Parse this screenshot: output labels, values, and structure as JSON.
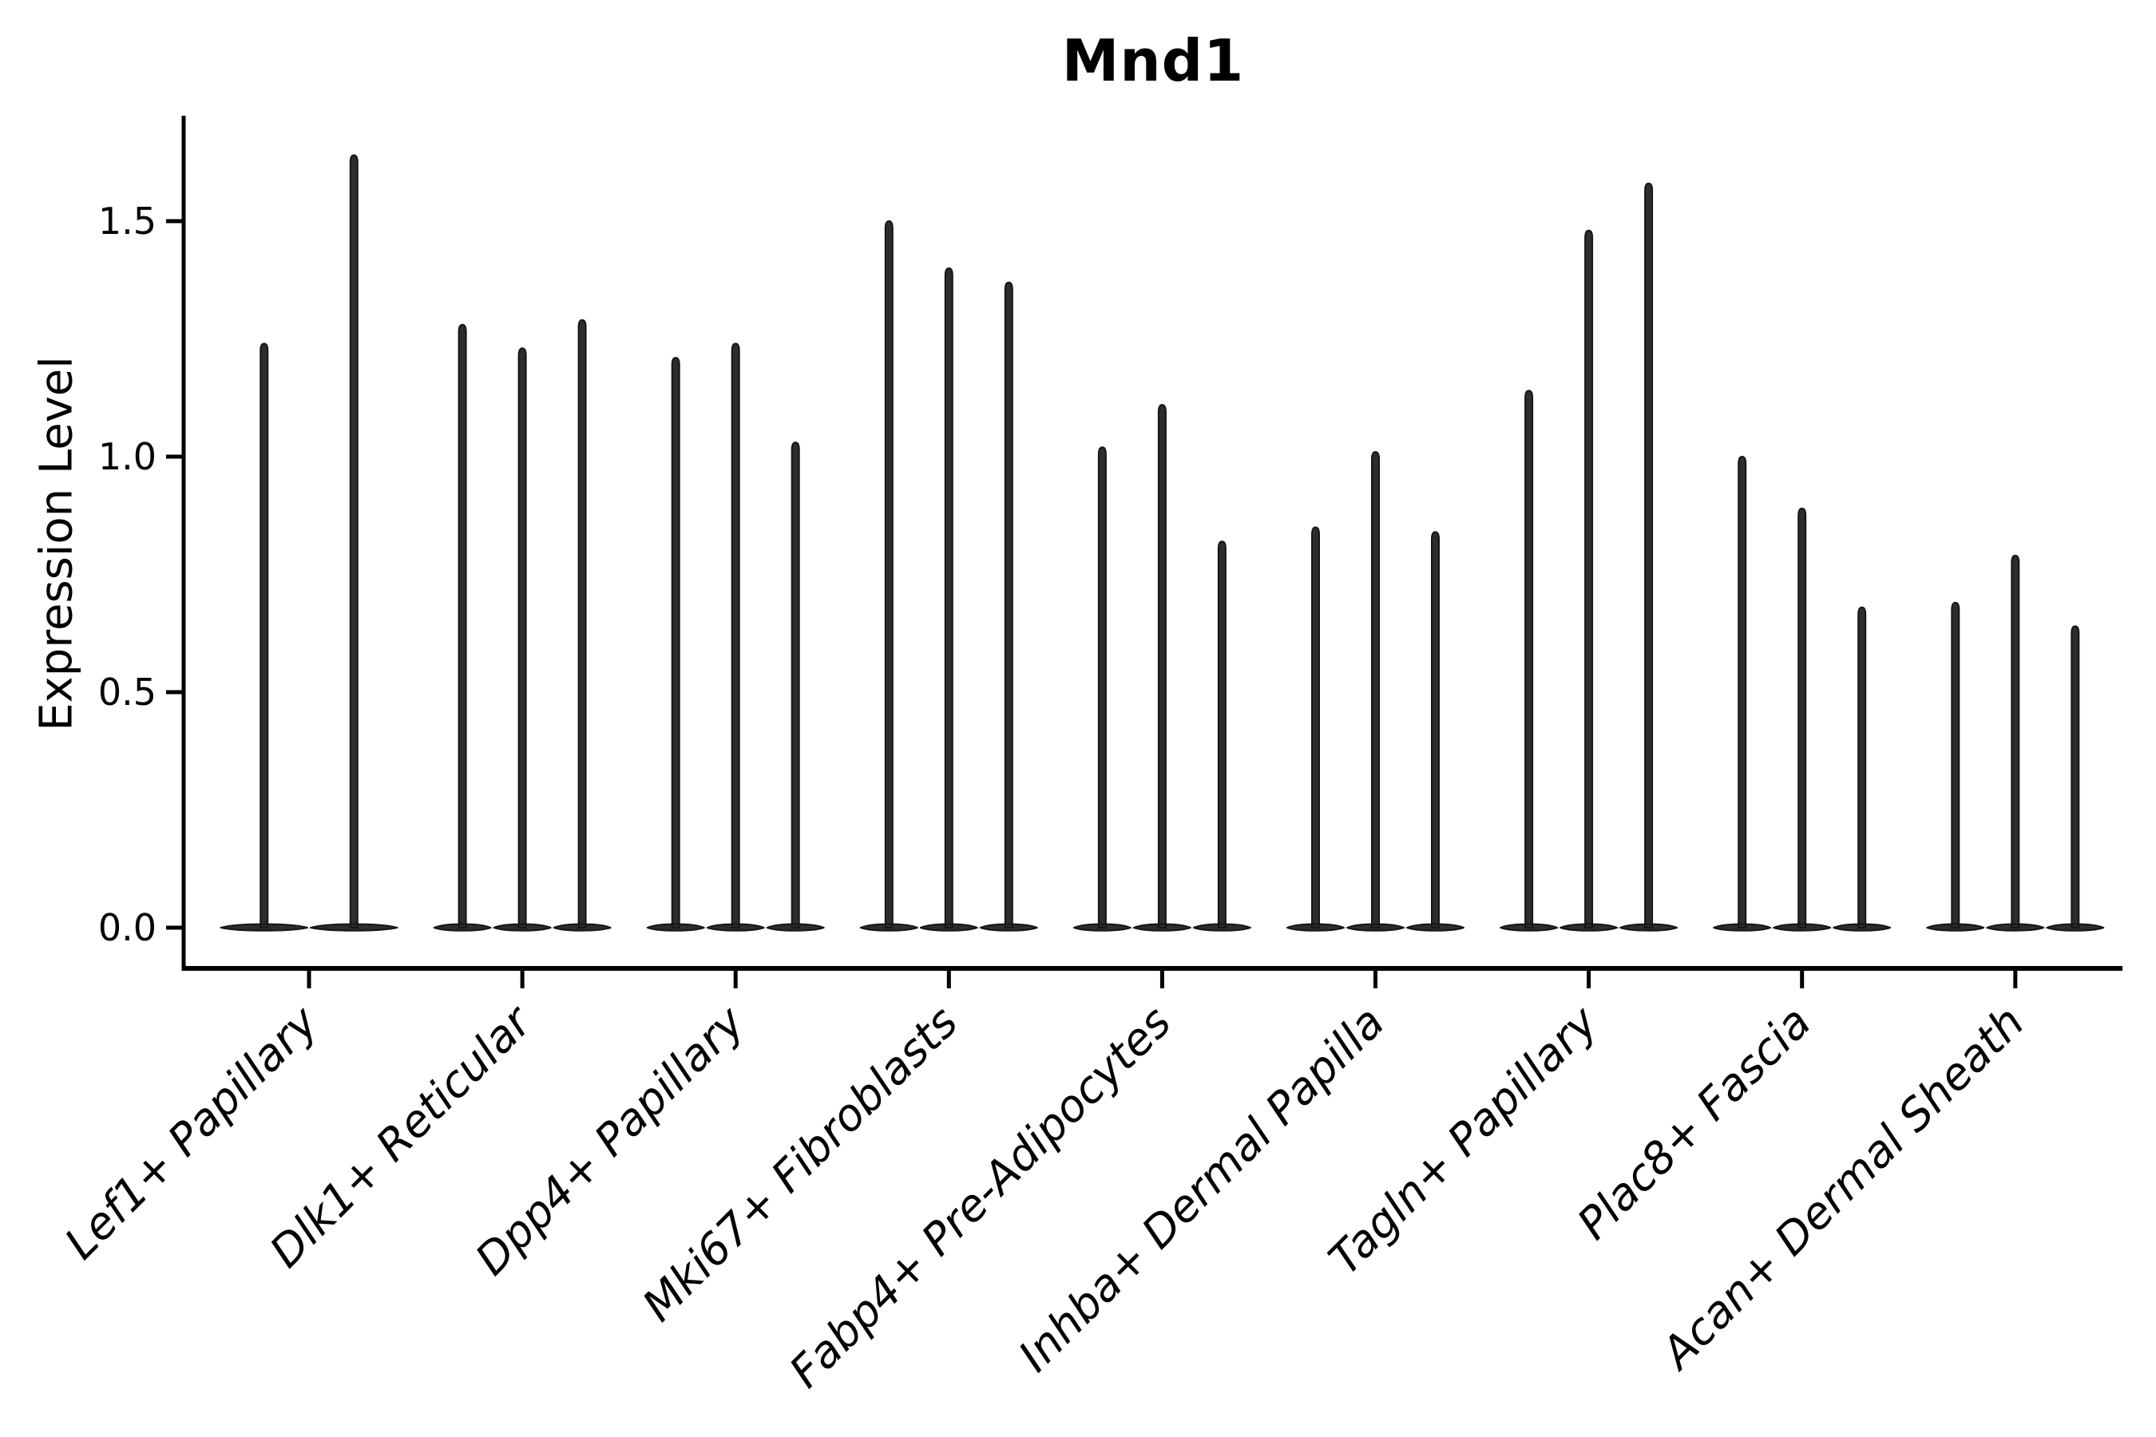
{
  "title": "Mnd1",
  "ylabel": "Expression Level",
  "colors": {
    "background": "#ffffff",
    "violin_fill": "#2d2d2d",
    "violin_stroke": "#161616",
    "axis": "#000000",
    "text": "#000000"
  },
  "chart_data": {
    "type": "violin",
    "title": "Mnd1",
    "xlabel": "",
    "ylabel": "Expression Level",
    "grid": false,
    "legend": false,
    "ylim": [
      -0.08,
      1.72
    ],
    "yticks": [
      0.0,
      0.5,
      1.0,
      1.5
    ],
    "ytick_labels": [
      "0.0",
      "0.5",
      "1.0",
      "1.5"
    ],
    "categories": [
      "Lef1+ Papillary",
      "Dlk1+ Reticular",
      "Dpp4+ Papillary",
      "Mki67+ Fibroblasts",
      "Fabp4+ Pre-Adipocytes",
      "Inhba+ Dermal Papilla",
      "Tagln+ Papillary",
      "Plac8+ Fascia",
      "Acan+ Dermal Sheath"
    ],
    "series": [
      {
        "category": "Lef1+ Papillary",
        "violin_peaks": [
          1.24,
          1.64
        ]
      },
      {
        "category": "Dlk1+ Reticular",
        "violin_peaks": [
          1.28,
          1.23,
          1.29
        ]
      },
      {
        "category": "Dpp4+ Papillary",
        "violin_peaks": [
          1.21,
          1.24,
          1.03
        ]
      },
      {
        "category": "Mki67+ Fibroblasts",
        "violin_peaks": [
          1.5,
          1.4,
          1.37
        ]
      },
      {
        "category": "Fabp4+ Pre-Adipocytes",
        "violin_peaks": [
          1.02,
          1.11,
          0.82
        ]
      },
      {
        "category": "Inhba+ Dermal Papilla",
        "violin_peaks": [
          0.85,
          1.01,
          0.84
        ]
      },
      {
        "category": "Tagln+ Papillary",
        "violin_peaks": [
          1.14,
          1.48,
          1.58
        ]
      },
      {
        "category": "Plac8+ Fascia",
        "violin_peaks": [
          1.0,
          0.89,
          0.68
        ]
      },
      {
        "category": "Acan+ Dermal Sheath",
        "violin_peaks": [
          0.69,
          0.79,
          0.64
        ]
      }
    ],
    "style_notes": "zero-inflated expression: each violin renders as a flat base at 0 with a thin spike up to its maximum; violin widths scale so each category spans equal width"
  }
}
